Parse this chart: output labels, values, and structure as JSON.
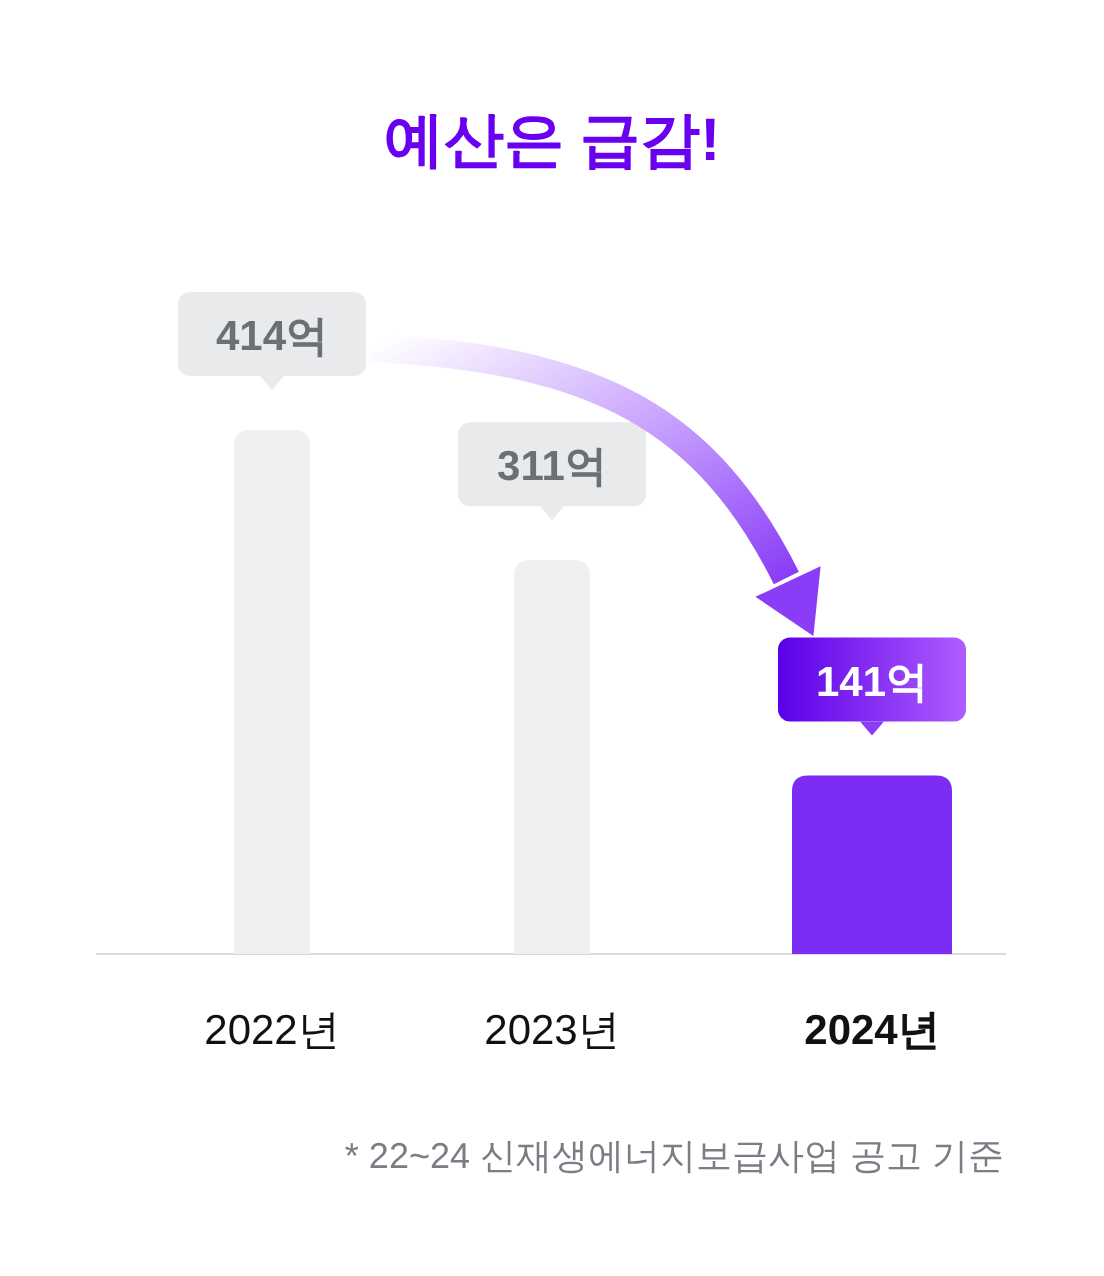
{
  "chart_data": {
    "type": "bar",
    "title": "예산은 급감!",
    "categories": [
      "2022년",
      "2023년",
      "2024년"
    ],
    "values": [
      414,
      311,
      141
    ],
    "colors": [
      "#eff0f2",
      "#eff0f2",
      "#7b2cf5"
    ],
    "value_labels": [
      "414억",
      "311억",
      "141억"
    ],
    "annotations": [
      "* 22~24 신재생에너지보급사업 공고 기준"
    ]
  }
}
